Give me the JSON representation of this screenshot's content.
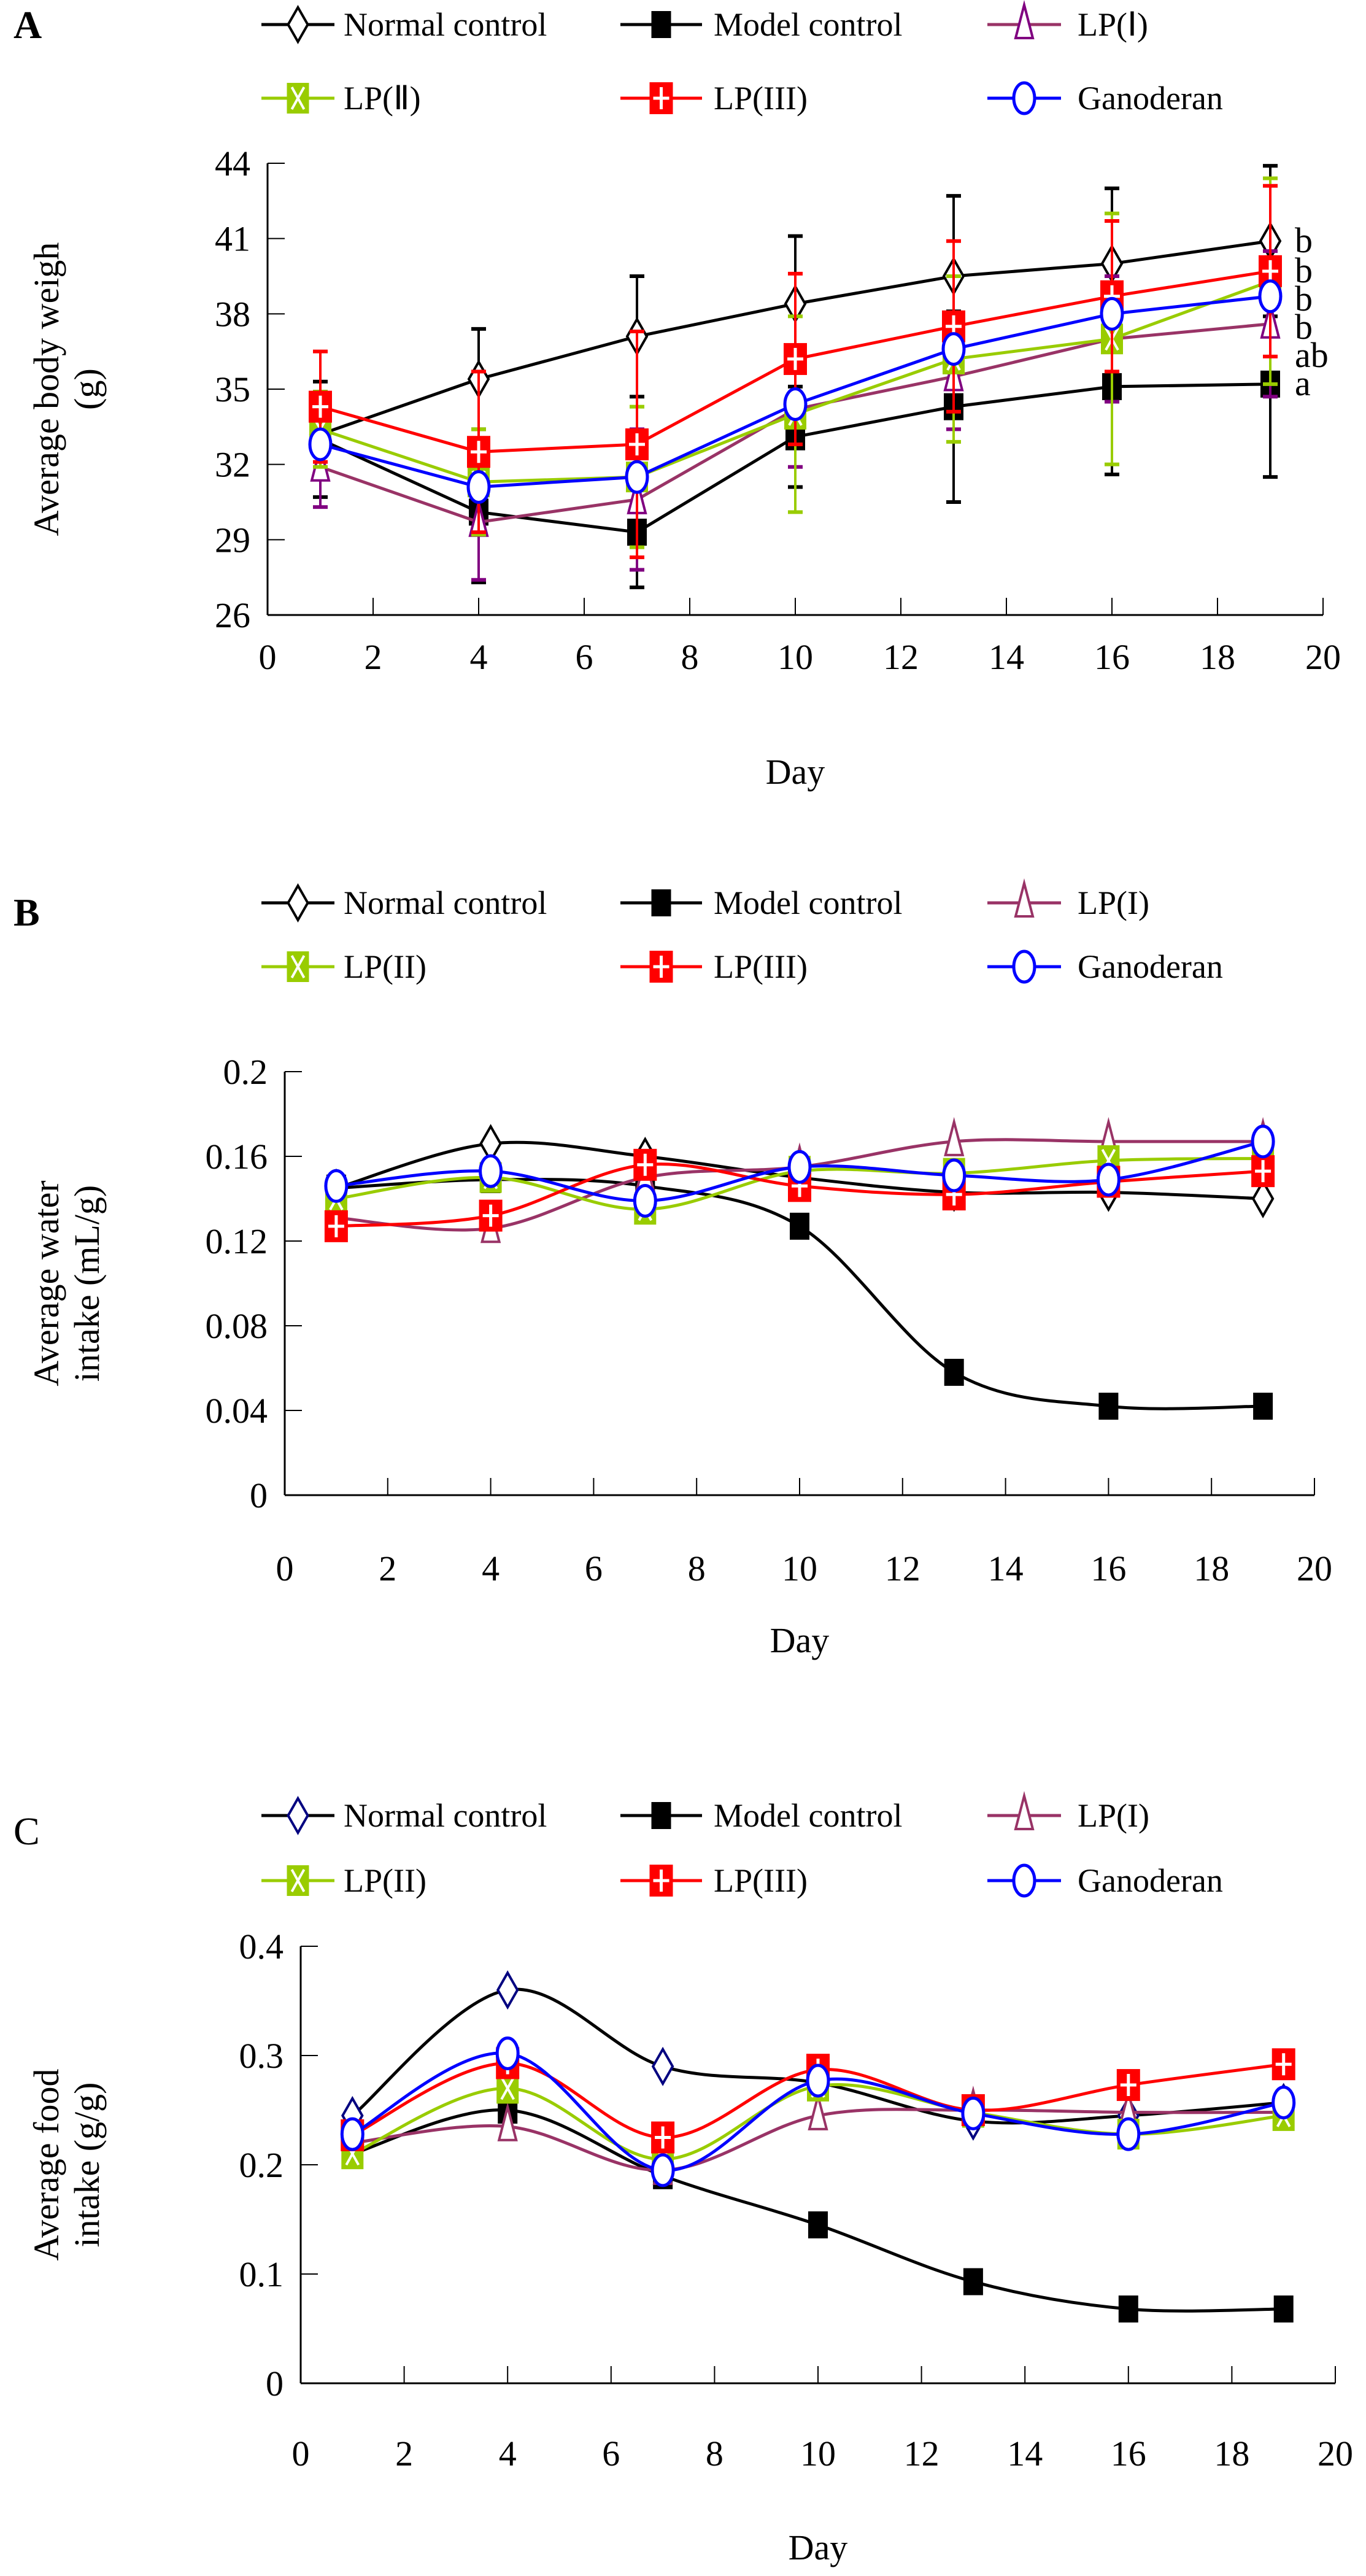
{
  "chart_data": [
    {
      "type": "line",
      "panel": "A",
      "xlabel": "Day",
      "ylabel": [
        "Average body weigh",
        "(g)"
      ],
      "xlim": [
        0,
        20
      ],
      "ylim": [
        26,
        44
      ],
      "xticks": [
        0,
        2,
        4,
        6,
        8,
        10,
        12,
        14,
        16,
        18,
        20
      ],
      "yticks": [
        26,
        29,
        32,
        35,
        38,
        41,
        44
      ],
      "smooth": false,
      "x": [
        1,
        4,
        7,
        10,
        13,
        16,
        19
      ],
      "series": [
        {
          "name": "Normal control",
          "color": "#000000",
          "marker": "diamond",
          "markerColor": "#000000",
          "values": [
            33.2,
            35.4,
            37.1,
            38.4,
            39.5,
            40.0,
            40.9
          ],
          "error": [
            1.7,
            2.0,
            2.4,
            2.7,
            3.2,
            3.0,
            3.0
          ],
          "sig": "b"
        },
        {
          "name": "Model control",
          "color": "#000000",
          "marker": "square-filled",
          "markerColor": "#000000",
          "values": [
            33.0,
            30.1,
            29.3,
            33.1,
            34.3,
            35.1,
            35.2
          ],
          "error": [
            2.3,
            2.8,
            2.2,
            2.0,
            3.8,
            3.5,
            3.7
          ],
          "sig": "a"
        },
        {
          "name": "LP(Ⅰ)",
          "color": "#993366",
          "marker": "triangle",
          "markerColor": "#800080",
          "values": [
            31.9,
            29.7,
            30.6,
            34.2,
            35.5,
            37.0,
            37.6
          ],
          "error": [
            1.6,
            2.3,
            2.8,
            2.3,
            2.1,
            2.5,
            2.9
          ],
          "sig": "ab"
        },
        {
          "name": "LP(Ⅱ)",
          "color": "#99CC00",
          "marker": "square-x",
          "markerColor": "#99CC00",
          "values": [
            33.4,
            31.3,
            31.5,
            34.0,
            36.2,
            37.0,
            39.3
          ],
          "error": [
            1.5,
            2.1,
            2.8,
            3.9,
            3.3,
            5.0,
            4.1
          ],
          "sig": "b"
        },
        {
          "name": "LP(III)",
          "color": "#FF0000",
          "marker": "square-plus",
          "markerColor": "#FF0000",
          "values": [
            34.3,
            32.5,
            32.8,
            36.2,
            37.5,
            38.7,
            39.7
          ],
          "error": [
            2.2,
            3.2,
            4.5,
            3.4,
            3.4,
            3.0,
            3.4
          ],
          "sig": "b"
        },
        {
          "name": "Ganoderan",
          "color": "#0000FF",
          "marker": "circle",
          "markerColor": "#0000FF",
          "values": [
            32.8,
            31.1,
            31.5,
            34.4,
            36.6,
            38.0,
            38.7
          ],
          "sig": "b"
        }
      ]
    },
    {
      "type": "line",
      "panel": "B",
      "xlabel": "Day",
      "ylabel": [
        "Average water",
        "intake (mL/g)"
      ],
      "xlim": [
        0,
        20
      ],
      "ylim": [
        0,
        0.2
      ],
      "xticks": [
        0,
        2,
        4,
        6,
        8,
        10,
        12,
        14,
        16,
        18,
        20
      ],
      "yticks": [
        0,
        0.04,
        0.08,
        0.12,
        0.16,
        0.2
      ],
      "yticklabels": [
        "0",
        "0.04",
        "0.08",
        "0.12",
        "0.16",
        "0.2"
      ],
      "smooth": true,
      "x": [
        1,
        4,
        7,
        10,
        13,
        16,
        19
      ],
      "series": [
        {
          "name": "Normal control",
          "color": "#000000",
          "marker": "diamond",
          "markerColor": "#000000",
          "values": [
            0.145,
            0.166,
            0.16,
            0.15,
            0.143,
            0.143,
            0.14
          ]
        },
        {
          "name": "Model control",
          "color": "#000000",
          "marker": "square-filled",
          "markerColor": "#000000",
          "values": [
            0.145,
            0.149,
            0.146,
            0.127,
            0.058,
            0.042,
            0.042
          ]
        },
        {
          "name": "LP(I)",
          "color": "#993366",
          "marker": "triangle",
          "markerColor": "#993366",
          "values": [
            0.131,
            0.126,
            0.15,
            0.155,
            0.167,
            0.167,
            0.167
          ]
        },
        {
          "name": "LP(II)",
          "color": "#99CC00",
          "marker": "square-x",
          "markerColor": "#99CC00",
          "values": [
            0.14,
            0.15,
            0.135,
            0.153,
            0.152,
            0.158,
            0.159
          ]
        },
        {
          "name": "LP(III)",
          "color": "#FF0000",
          "marker": "square-plus",
          "markerColor": "#FF0000",
          "values": [
            0.127,
            0.132,
            0.156,
            0.146,
            0.142,
            0.148,
            0.153
          ]
        },
        {
          "name": "Ganoderan",
          "color": "#0000FF",
          "marker": "circle",
          "markerColor": "#0000FF",
          "values": [
            0.146,
            0.153,
            0.139,
            0.155,
            0.151,
            0.149,
            0.167
          ]
        }
      ]
    },
    {
      "type": "line",
      "panel": "C",
      "xlabel": "Day",
      "ylabel": [
        "Average food",
        "intake (g/g)"
      ],
      "xlim": [
        0,
        20
      ],
      "ylim": [
        0,
        0.4
      ],
      "xticks": [
        0,
        2,
        4,
        6,
        8,
        10,
        12,
        14,
        16,
        18,
        20
      ],
      "yticks": [
        0,
        0.1,
        0.2,
        0.3,
        0.4
      ],
      "yticklabels": [
        "0",
        "0.1",
        "0.2",
        "0.3",
        "0.4"
      ],
      "smooth": true,
      "x": [
        1,
        4,
        7,
        10,
        13,
        16,
        19
      ],
      "series": [
        {
          "name": "Normal control",
          "color": "#000000",
          "marker": "diamond",
          "markerColor": "#000080",
          "values": [
            0.245,
            0.36,
            0.29,
            0.275,
            0.24,
            0.245,
            0.257
          ]
        },
        {
          "name": "Model control",
          "color": "#000000",
          "marker": "square-filled",
          "markerColor": "#000000",
          "values": [
            0.21,
            0.25,
            0.19,
            0.145,
            0.093,
            0.068,
            0.068
          ]
        },
        {
          "name": "LP(I)",
          "color": "#993366",
          "marker": "triangle",
          "markerColor": "#993366",
          "values": [
            0.22,
            0.235,
            0.195,
            0.245,
            0.25,
            0.248,
            0.248
          ]
        },
        {
          "name": "LP(II)",
          "color": "#99CC00",
          "marker": "square-x",
          "markerColor": "#99CC00",
          "values": [
            0.21,
            0.27,
            0.205,
            0.272,
            0.248,
            0.228,
            0.245
          ]
        },
        {
          "name": "LP(III)",
          "color": "#FF0000",
          "marker": "square-plus",
          "markerColor": "#FF0000",
          "values": [
            0.227,
            0.293,
            0.225,
            0.287,
            0.25,
            0.273,
            0.292
          ]
        },
        {
          "name": "Ganoderan",
          "color": "#0000FF",
          "marker": "circle",
          "markerColor": "#0000FF",
          "values": [
            0.228,
            0.302,
            0.195,
            0.277,
            0.247,
            0.228,
            0.257
          ]
        }
      ]
    }
  ]
}
